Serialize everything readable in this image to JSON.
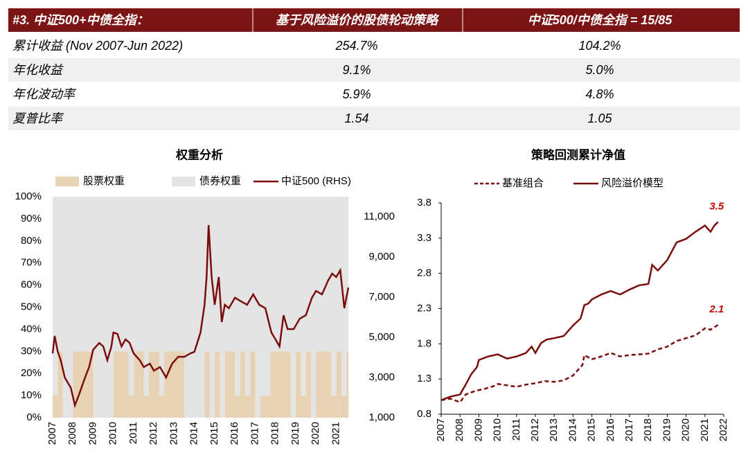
{
  "table": {
    "header": [
      "#3. 中证500+中债全指：",
      "基于风险溢价的股债轮动策略",
      "中证500/中债全指 = 15/85"
    ],
    "rows": [
      [
        "累计收益 (Nov 2007-Jun 2022)",
        "254.7%",
        "104.2%"
      ],
      [
        "年化收益",
        "9.1%",
        "5.0%"
      ],
      [
        "年化波动率",
        "5.9%",
        "4.8%"
      ],
      [
        "夏普比率",
        "1.54",
        "1.05"
      ]
    ]
  },
  "chart_data": [
    {
      "type": "area",
      "title": "权重分析",
      "xlim": [
        2007,
        2021.6
      ],
      "xticks": [
        2007,
        2008,
        2009,
        2010,
        2011,
        2012,
        2013,
        2014,
        2015,
        2016,
        2017,
        2018,
        2019,
        2020,
        2021
      ],
      "ylim": [
        0,
        100
      ],
      "yticks": [
        {
          "value": 0,
          "label": "0%"
        },
        {
          "value": 10,
          "label": "10%"
        },
        {
          "value": 20,
          "label": "20%"
        },
        {
          "value": 30,
          "label": "30%"
        },
        {
          "value": 40,
          "label": "40%"
        },
        {
          "value": 50,
          "label": "50%"
        },
        {
          "value": 60,
          "label": "60%"
        },
        {
          "value": 70,
          "label": "70%"
        },
        {
          "value": 80,
          "label": "80%"
        },
        {
          "value": 90,
          "label": "90%"
        },
        {
          "value": 100,
          "label": "100%"
        }
      ],
      "y2lim": [
        1000,
        12000
      ],
      "y2ticks": [
        {
          "value": 1000,
          "label": "1,000"
        },
        {
          "value": 3000,
          "label": "3,000"
        },
        {
          "value": 5000,
          "label": "5,000"
        },
        {
          "value": 7000,
          "label": "7,000"
        },
        {
          "value": 9000,
          "label": "9,000"
        },
        {
          "value": 11000,
          "label": "11,000"
        }
      ],
      "series": [
        {
          "name": "股票权重",
          "type": "area",
          "color": "#e8d2b4",
          "x": [
            2007,
            2007.25,
            2007.5,
            2007.75,
            2008,
            2008.25,
            2008.5,
            2008.75,
            2009,
            2009.25,
            2009.5,
            2009.75,
            2010,
            2010.25,
            2010.5,
            2010.75,
            2011,
            2011.25,
            2011.5,
            2011.75,
            2012,
            2012.25,
            2012.5,
            2012.75,
            2013,
            2013.25,
            2013.5,
            2013.75,
            2014,
            2014.25,
            2014.5,
            2014.75,
            2015,
            2015.25,
            2015.5,
            2015.75,
            2016,
            2016.25,
            2016.5,
            2016.75,
            2017,
            2017.25,
            2017.5,
            2017.75,
            2018,
            2018.25,
            2018.5,
            2018.75,
            2019,
            2019.25,
            2019.5,
            2019.75,
            2020,
            2020.25,
            2020.5,
            2020.75,
            2021,
            2021.25,
            2021.5
          ],
          "values": [
            10,
            30,
            0,
            0,
            30,
            30,
            30,
            30,
            0,
            0,
            0,
            0,
            30,
            30,
            30,
            10,
            30,
            30,
            10,
            30,
            30,
            10,
            30,
            30,
            30,
            30,
            0,
            0,
            0,
            0,
            30,
            0,
            30,
            0,
            30,
            30,
            10,
            30,
            10,
            30,
            0,
            10,
            10,
            30,
            30,
            30,
            30,
            0,
            30,
            10,
            30,
            0,
            30,
            30,
            30,
            10,
            30,
            10,
            30
          ]
        },
        {
          "name": "债券权重",
          "type": "area",
          "color": "#e4e4e4",
          "x": [
            2007,
            2007.25,
            2007.5,
            2007.75,
            2008,
            2008.25,
            2008.5,
            2008.75,
            2009,
            2009.25,
            2009.5,
            2009.75,
            2010,
            2010.25,
            2010.5,
            2010.75,
            2011,
            2011.25,
            2011.5,
            2011.75,
            2012,
            2012.25,
            2012.5,
            2012.75,
            2013,
            2013.25,
            2013.5,
            2013.75,
            2014,
            2014.25,
            2014.5,
            2014.75,
            2015,
            2015.25,
            2015.5,
            2015.75,
            2016,
            2016.25,
            2016.5,
            2016.75,
            2017,
            2017.25,
            2017.5,
            2017.75,
            2018,
            2018.25,
            2018.5,
            2018.75,
            2019,
            2019.25,
            2019.5,
            2019.75,
            2020,
            2020.25,
            2020.5,
            2020.75,
            2021,
            2021.25,
            2021.5
          ],
          "values": [
            90,
            70,
            100,
            100,
            70,
            70,
            70,
            70,
            100,
            100,
            100,
            100,
            70,
            70,
            70,
            90,
            70,
            70,
            90,
            70,
            70,
            90,
            70,
            70,
            70,
            70,
            100,
            100,
            100,
            100,
            70,
            100,
            70,
            100,
            70,
            70,
            90,
            70,
            90,
            70,
            100,
            90,
            90,
            70,
            70,
            70,
            70,
            100,
            70,
            90,
            70,
            100,
            70,
            70,
            70,
            90,
            70,
            90,
            70
          ]
        },
        {
          "name": "中证500 (RHS)",
          "type": "line",
          "axis": "y2",
          "color": "#7a0c0c",
          "x": [
            2007,
            2007.1,
            2007.25,
            2007.4,
            2007.6,
            2007.9,
            2008.1,
            2008.3,
            2008.6,
            2008.8,
            2009,
            2009.3,
            2009.5,
            2009.7,
            2009.9,
            2010,
            2010.2,
            2010.4,
            2010.6,
            2010.8,
            2011,
            2011.3,
            2011.5,
            2011.8,
            2012,
            2012.3,
            2012.6,
            2012.9,
            2013.2,
            2013.5,
            2013.8,
            2014,
            2014.3,
            2014.5,
            2014.6,
            2014.7,
            2014.85,
            2015,
            2015.2,
            2015.35,
            2015.5,
            2015.7,
            2016,
            2016.3,
            2016.6,
            2016.9,
            2017.2,
            2017.5,
            2017.8,
            2018,
            2018.2,
            2018.4,
            2018.6,
            2018.9,
            2019.2,
            2019.5,
            2019.8,
            2020,
            2020.3,
            2020.6,
            2020.8,
            2021,
            2021.2,
            2021.4,
            2021.6
          ],
          "values": [
            4200,
            5070,
            4300,
            3860,
            3000,
            2480,
            1620,
            2140,
            3000,
            3520,
            4380,
            4720,
            4550,
            3860,
            4550,
            5240,
            5170,
            4550,
            4900,
            4720,
            4200,
            3860,
            3520,
            3690,
            3340,
            3520,
            3000,
            3690,
            4030,
            4030,
            4200,
            4280,
            5240,
            6620,
            8000,
            10590,
            8000,
            6620,
            8000,
            5760,
            6620,
            6450,
            6970,
            6790,
            6620,
            7140,
            6620,
            6450,
            5240,
            4900,
            4550,
            6100,
            5410,
            5410,
            5930,
            6100,
            6970,
            7310,
            7140,
            7830,
            8170,
            8000,
            8340,
            6450,
            7480
          ]
        }
      ]
    },
    {
      "type": "line",
      "title": "策略回测累计净值",
      "xlim": [
        2007,
        2022
      ],
      "xticks": [
        2007,
        2008,
        2009,
        2010,
        2011,
        2012,
        2013,
        2014,
        2015,
        2016,
        2017,
        2018,
        2019,
        2020,
        2021,
        2022
      ],
      "ylim": [
        0.8,
        3.8
      ],
      "yticks": [
        0.8,
        1.3,
        1.8,
        2.3,
        2.8,
        3.3,
        3.8
      ],
      "annotations": [
        "3.5",
        "2.1"
      ],
      "annotation_color": "#c00000",
      "series": [
        {
          "name": "基准组合",
          "dashed": true,
          "color": "#7a0c0c",
          "x": [
            2007,
            2007.5,
            2008,
            2008.3,
            2008.8,
            2009.3,
            2009.8,
            2010,
            2010.5,
            2011,
            2011.5,
            2012,
            2012.5,
            2013,
            2013.5,
            2014,
            2014.5,
            2014.6,
            2015,
            2015.5,
            2016,
            2016.5,
            2017,
            2017.5,
            2018,
            2018.5,
            2019,
            2019.5,
            2020,
            2020.5,
            2021,
            2021.3,
            2021.7
          ],
          "values": [
            1.0,
            1.02,
            0.97,
            1.08,
            1.13,
            1.16,
            1.2,
            1.23,
            1.21,
            1.19,
            1.22,
            1.24,
            1.27,
            1.26,
            1.28,
            1.35,
            1.5,
            1.64,
            1.58,
            1.62,
            1.67,
            1.62,
            1.64,
            1.65,
            1.66,
            1.72,
            1.76,
            1.84,
            1.88,
            1.92,
            2.02,
            2.0,
            2.07
          ]
        },
        {
          "name": "风险溢价模型",
          "dashed": false,
          "color": "#7a0c0c",
          "x": [
            2007,
            2007.5,
            2008,
            2008.3,
            2008.6,
            2008.9,
            2009,
            2009.5,
            2010,
            2010.5,
            2011,
            2011.5,
            2011.8,
            2012,
            2012.3,
            2012.6,
            2013,
            2013.5,
            2014,
            2014.4,
            2014.6,
            2014.8,
            2015,
            2015.5,
            2016,
            2016.5,
            2017,
            2017.5,
            2018,
            2018.2,
            2018.5,
            2019,
            2019.5,
            2020,
            2020.5,
            2021,
            2021.3,
            2021.5,
            2021.7
          ],
          "values": [
            1.0,
            1.05,
            1.08,
            1.22,
            1.37,
            1.47,
            1.57,
            1.62,
            1.65,
            1.59,
            1.62,
            1.67,
            1.76,
            1.67,
            1.81,
            1.86,
            1.88,
            1.91,
            2.06,
            2.16,
            2.35,
            2.37,
            2.43,
            2.5,
            2.55,
            2.5,
            2.57,
            2.63,
            2.65,
            2.92,
            2.84,
            2.99,
            3.24,
            3.29,
            3.39,
            3.48,
            3.39,
            3.48,
            3.53
          ]
        }
      ]
    }
  ]
}
